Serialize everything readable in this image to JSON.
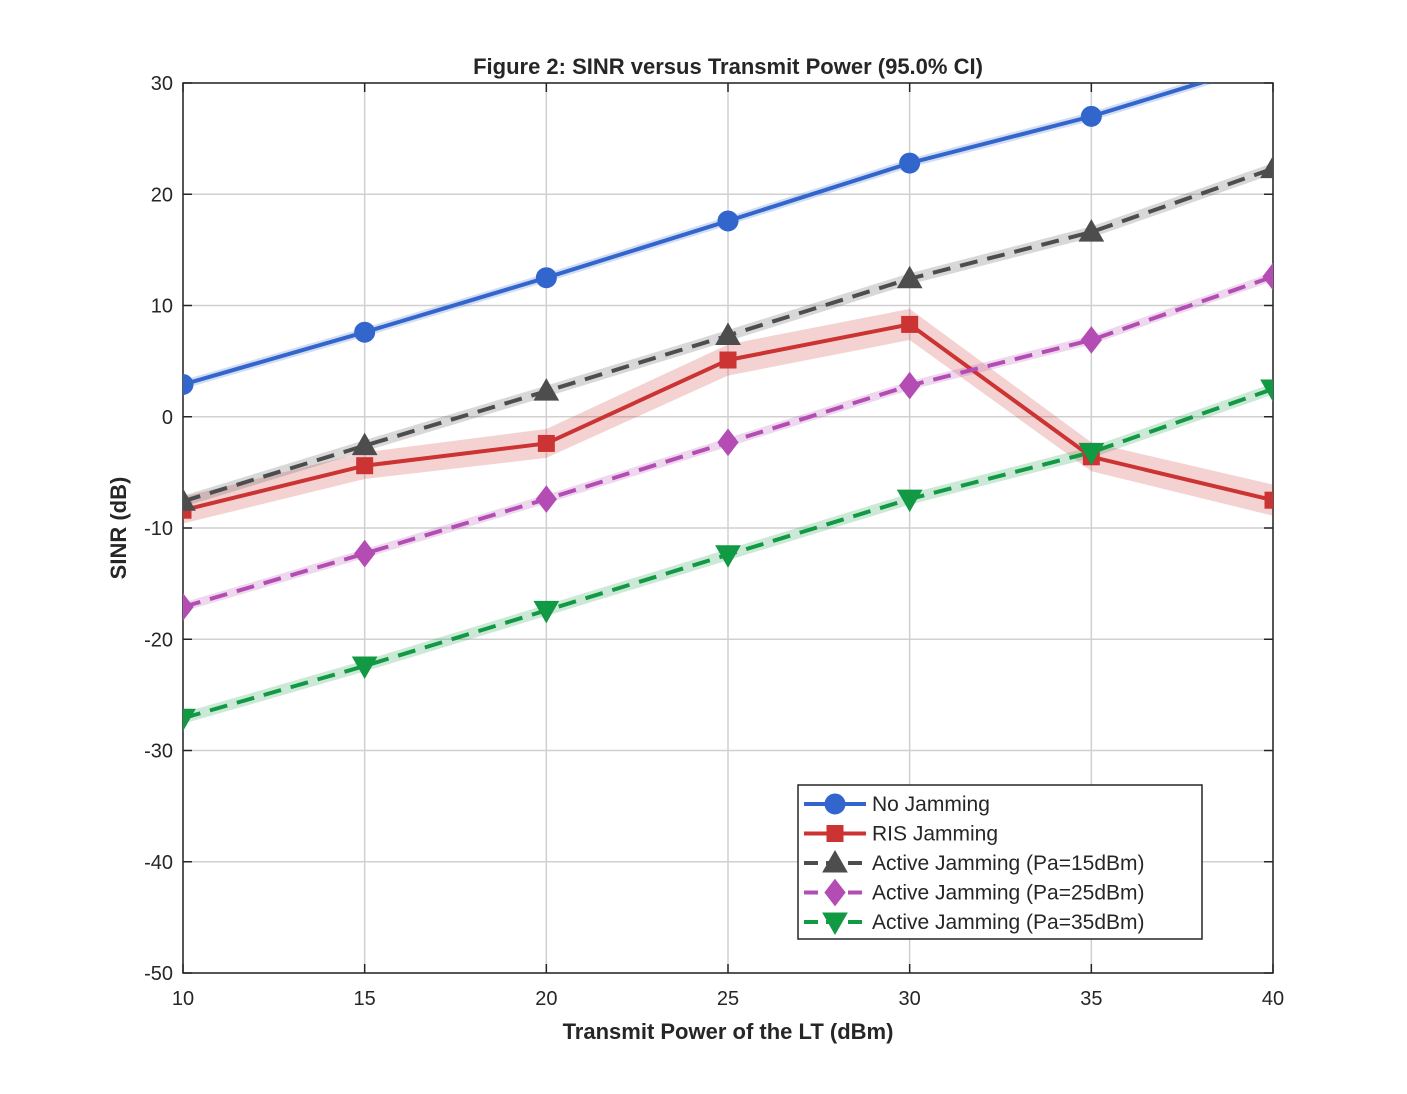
{
  "chart_data": {
    "type": "line",
    "title": "Figure 2: SINR versus Transmit Power (95.0% CI)",
    "xlabel": "Transmit Power of the LT (dBm)",
    "ylabel": "SINR (dB)",
    "xlim": [
      10,
      40
    ],
    "ylim": [
      -50,
      30
    ],
    "xticks": [
      "10",
      "15",
      "20",
      "25",
      "30",
      "35",
      "40"
    ],
    "yticks": [
      "30",
      "20",
      "10",
      "0",
      "-10",
      "-20",
      "-30",
      "-40",
      "-50"
    ],
    "grid": true,
    "legend_position": "bottom-right",
    "x": [
      10,
      15,
      20,
      25,
      30,
      35,
      40
    ],
    "series": [
      {
        "name": "No Jamming",
        "color": "#3366cc",
        "dash": "solid",
        "marker": "circle",
        "values": [
          2.9,
          7.6,
          12.5,
          17.6,
          22.8,
          27.0,
          32.0
        ],
        "ci": [
          0.4,
          0.4,
          0.4,
          0.4,
          0.4,
          0.4,
          0.4
        ]
      },
      {
        "name": "RIS Jamming",
        "color": "#cc3333",
        "dash": "solid",
        "marker": "square",
        "values": [
          -8.4,
          -4.4,
          -2.4,
          5.1,
          8.3,
          -3.6,
          -7.5
        ],
        "ci": [
          1.2,
          1.2,
          1.3,
          1.4,
          1.4,
          1.3,
          1.4
        ]
      },
      {
        "name": "Active Jamming (Pa=15dBm)",
        "color": "#4d4d4d",
        "dash": "dashed",
        "marker": "triangle-up",
        "values": [
          -7.6,
          -2.6,
          2.3,
          7.3,
          12.4,
          16.6,
          22.3
        ],
        "ci": [
          0.5,
          0.5,
          0.5,
          0.5,
          0.5,
          0.5,
          0.5
        ]
      },
      {
        "name": "Active Jamming (Pa=25dBm)",
        "color": "#b34db3",
        "dash": "dashed",
        "marker": "diamond",
        "values": [
          -17.1,
          -12.3,
          -7.4,
          -2.3,
          2.8,
          6.9,
          12.6
        ],
        "ci": [
          0.4,
          0.4,
          0.4,
          0.4,
          0.4,
          0.4,
          0.4
        ]
      },
      {
        "name": "Active Jamming (Pa=35dBm)",
        "color": "#119944",
        "dash": "dashed",
        "marker": "triangle-down",
        "values": [
          -27.1,
          -22.4,
          -17.4,
          -12.4,
          -7.4,
          -3.2,
          2.5
        ],
        "ci": [
          0.5,
          0.5,
          0.5,
          0.5,
          0.5,
          0.5,
          0.5
        ]
      }
    ]
  }
}
